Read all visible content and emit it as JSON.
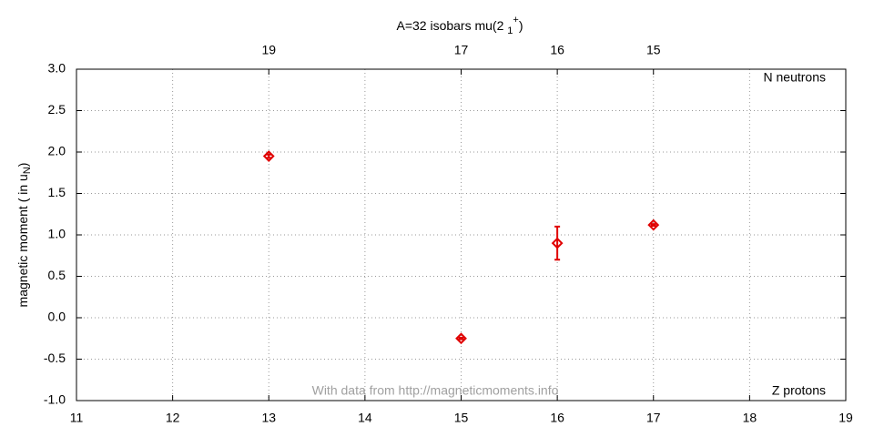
{
  "chart_data": {
    "type": "scatter",
    "title": {
      "text": "A=32 isobars mu(2 ",
      "sub": "1",
      "sup": "+",
      "end": ")"
    },
    "ylabel": {
      "text": "magnetic moment ( in u",
      "sub": "N",
      "end": ")"
    },
    "xlabel": "Z protons",
    "x2label": "N neutrons",
    "annotation": "With data from http://magneticmoments.info",
    "x": [
      13,
      15,
      16,
      17
    ],
    "series": [
      {
        "color": "#e00000",
        "values": [
          1.95,
          -0.25,
          0.9,
          1.12
        ],
        "errors": [
          0.02,
          0.01,
          0.2,
          0.01
        ]
      }
    ],
    "xlim": [
      11,
      19
    ],
    "xticks": [
      11,
      12,
      13,
      14,
      15,
      16,
      17,
      18,
      19
    ],
    "x2ticks": [
      {
        "value": 13,
        "label": "19"
      },
      {
        "value": 15,
        "label": "17"
      },
      {
        "value": 16,
        "label": "16"
      },
      {
        "value": 17,
        "label": "15"
      }
    ],
    "ylim": [
      -1,
      3
    ],
    "yticks": [
      {
        "value": -1,
        "label": "-1.0"
      },
      {
        "value": -0.5,
        "label": "-0.5"
      },
      {
        "value": 0,
        "label": "0.0"
      },
      {
        "value": 0.5,
        "label": "0.5"
      },
      {
        "value": 1,
        "label": "1.0"
      },
      {
        "value": 1.5,
        "label": "1.5"
      },
      {
        "value": 2,
        "label": "2.0"
      },
      {
        "value": 2.5,
        "label": "2.5"
      },
      {
        "value": 3,
        "label": "3.0"
      }
    ],
    "grid": true
  }
}
